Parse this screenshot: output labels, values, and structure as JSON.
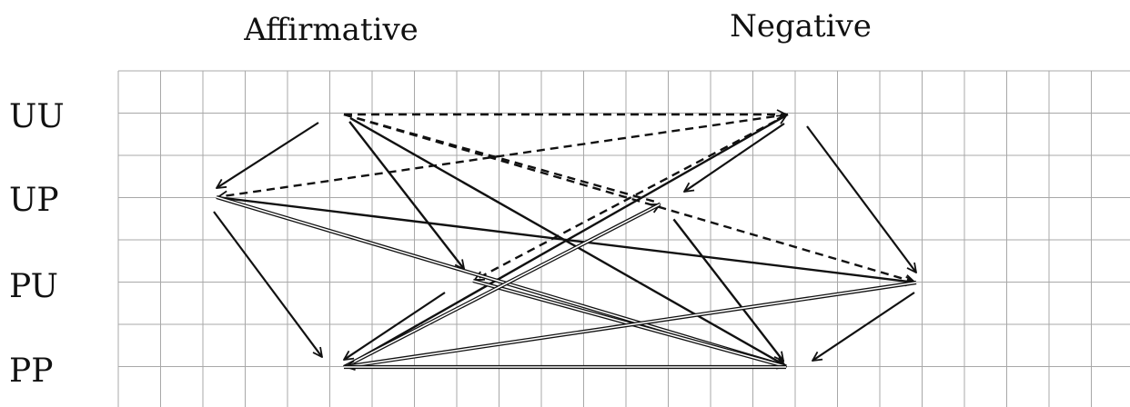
{
  "headers": {
    "affirmative": "Affirmative",
    "negative": "Negative"
  },
  "rows": {
    "uu": "UU",
    "up": "UP",
    "pu": "PU",
    "pp": "PP"
  }
}
